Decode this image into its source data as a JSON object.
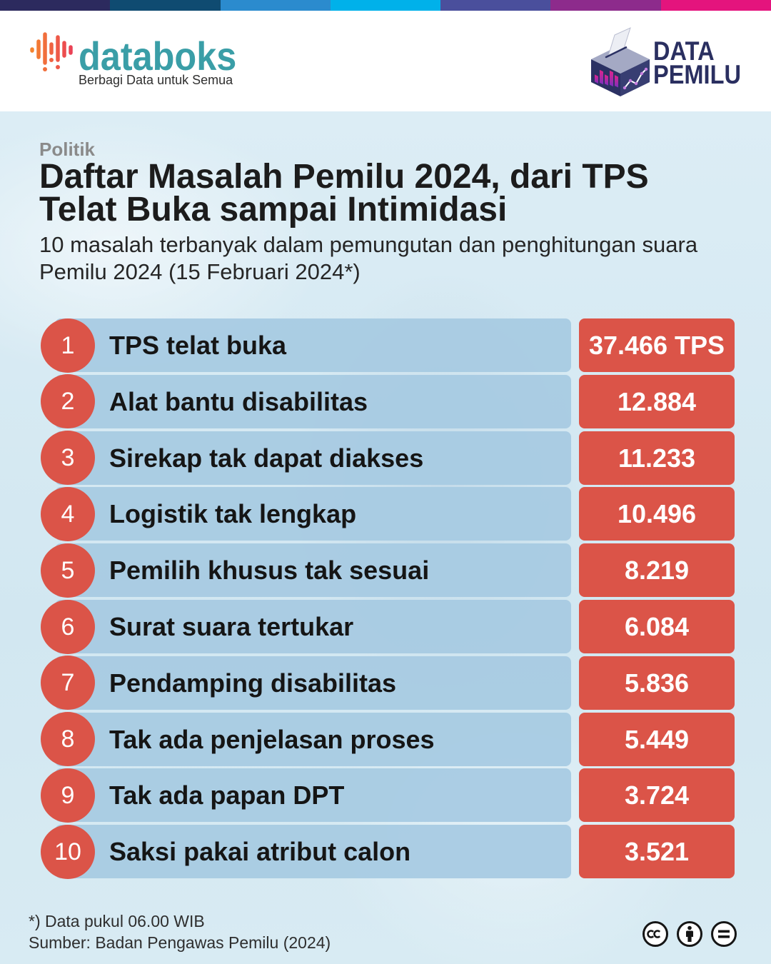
{
  "top_bar_colors": [
    "#2c2a5e",
    "#0f4b71",
    "#2b8bce",
    "#00b1ea",
    "#4a4f9c",
    "#8d2b8c",
    "#e4147d"
  ],
  "colors": {
    "accent_red": "#db5448",
    "brand_teal": "#3a9ea7",
    "partner_navy": "#2a2f60",
    "label_bar": "#a6cae2",
    "background": "#d6eaf3",
    "title_text": "#1c1c1c",
    "category_text": "#8a8a8a"
  },
  "brand": {
    "name": "databoks",
    "tagline": "Berbagi Data untuk Semua",
    "icon": "databoks-bars-icon"
  },
  "partner": {
    "line1": "DATA",
    "line2": "PEMILU",
    "icon": "ballot-box-icon"
  },
  "chart_data": {
    "type": "table",
    "category": "Politik",
    "title": [
      "Daftar Masalah Pemilu 2024, dari TPS",
      "Telat Buka sampai Intimidasi"
    ],
    "subtitle": [
      "10 masalah terbanyak dalam pemungutan dan penghitungan suara",
      "Pemilu 2024 (15 Februari 2024*)"
    ],
    "rows": [
      {
        "rank": 1,
        "label": "TPS telat buka",
        "value": 37466,
        "value_text": "37.466 TPS"
      },
      {
        "rank": 2,
        "label": "Alat bantu disabilitas",
        "value": 12884,
        "value_text": "12.884"
      },
      {
        "rank": 3,
        "label": "Sirekap tak dapat diakses",
        "value": 11233,
        "value_text": "11.233"
      },
      {
        "rank": 4,
        "label": "Logistik tak lengkap",
        "value": 10496,
        "value_text": "10.496"
      },
      {
        "rank": 5,
        "label": "Pemilih khusus tak sesuai",
        "value": 8219,
        "value_text": "8.219"
      },
      {
        "rank": 6,
        "label": "Surat suara tertukar",
        "value": 6084,
        "value_text": "6.084"
      },
      {
        "rank": 7,
        "label": "Pendamping disabilitas",
        "value": 5836,
        "value_text": "5.836"
      },
      {
        "rank": 8,
        "label": "Tak ada penjelasan proses",
        "value": 5449,
        "value_text": "5.449"
      },
      {
        "rank": 9,
        "label": "Tak ada papan DPT",
        "value": 3724,
        "value_text": "3.724"
      },
      {
        "rank": 10,
        "label": "Saksi pakai atribut calon",
        "value": 3521,
        "value_text": "3.521"
      }
    ]
  },
  "footer": {
    "footnote": "*) Data pukul 06.00 WIB",
    "source": "Sumber: Badan Pengawas Pemilu (2024)"
  },
  "license_icons": [
    "cc-icon",
    "by-icon",
    "nd-icon"
  ]
}
